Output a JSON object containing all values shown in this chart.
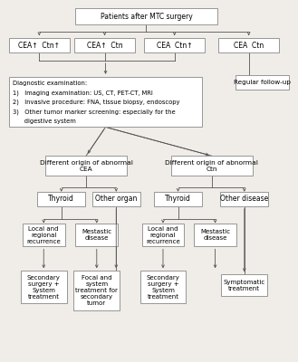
{
  "bg_color": "#f0ede8",
  "box_bg": "#ffffff",
  "box_edge": "#888888",
  "arrow_color": "#555555",
  "font_size": 5.5,
  "top_box": "Patients after MTC surgery",
  "cea_ctn_boxes": [
    "CEA↑  Ctn↑",
    "CEA↑  Ctn",
    "CEA  Ctn↑",
    "CEA  Ctn"
  ],
  "diag_box_lines": [
    "Diagnostic examination:",
    "1)   Imaging examination: US, CT, PET-CT, MRI",
    "2)   Invasive procedure: FNA, tissue biopsy, endoscopy",
    "3)   Other tumor marker screening: especially for the",
    "      digestive system"
  ],
  "followup_box": "Regular follow-up",
  "cea_branch_box": "Different origin of abnormal\nCEA",
  "ctn_branch_box": "Different origin of abnormal\nCtn",
  "thyroid_box1": "Thyroid",
  "other_organ_box": "Other organ",
  "thyroid_box2": "Thyroid",
  "other_disease_box": "Other disease",
  "local_rec_box1": "Local and\nregional\nrecurrence",
  "mestastic_box1": "Mestastic\ndisease",
  "local_rec_box2": "Local and\nregional\nrecurrence",
  "mestastic_box2": "Mestastic\ndisease",
  "sec_surgery_box1": "Secondary\nsurgery +\nSystem\ntreatment",
  "focal_box": "Focal and\nsystem\ntreatment for\nsecondary\ntumor",
  "sec_surgery_box2": "Secondary\nsurgery +\nSystem\ntreatment",
  "symptomatic_box": "Symptomatic\ntreatment"
}
